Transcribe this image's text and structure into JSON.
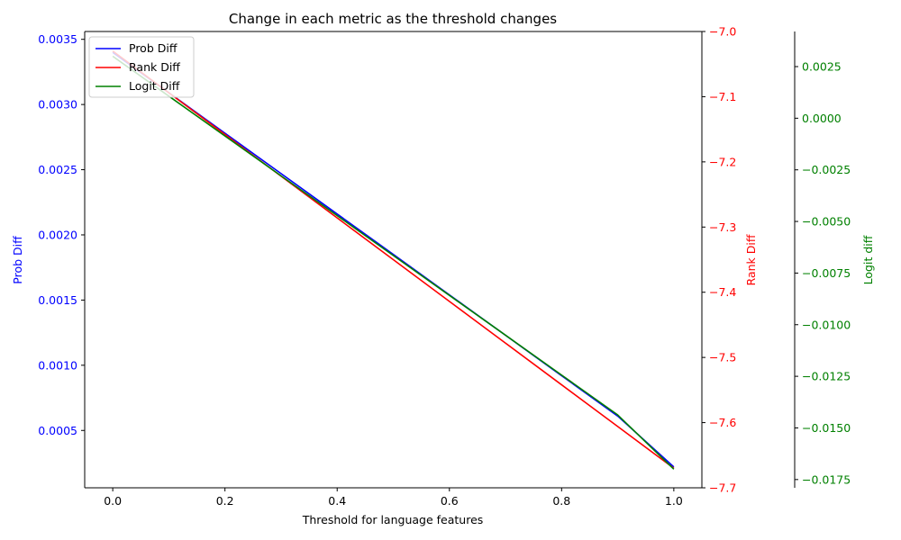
{
  "chart_data": {
    "type": "line",
    "title": "Change in each metric as the threshold changes",
    "xlabel": "Threshold for language features",
    "x": [
      0.0,
      0.1,
      0.2,
      0.3,
      0.4,
      0.5,
      0.6,
      0.7,
      0.8,
      0.9,
      1.0
    ],
    "xlim": [
      -0.05,
      1.05
    ],
    "xticks": [
      "0.0",
      "0.2",
      "0.4",
      "0.6",
      "0.8",
      "1.0"
    ],
    "axes": [
      {
        "id": "left",
        "label": "Prob Diff",
        "color": "#0000ff",
        "ylim": [
          6e-05,
          0.00356
        ],
        "ticks": [
          "0.0005",
          "0.0010",
          "0.0015",
          "0.0020",
          "0.0025",
          "0.0030",
          "0.0035"
        ]
      },
      {
        "id": "right",
        "label": "Rank Diff",
        "color": "#ff0000",
        "ylim": [
          -7.7,
          -7.0
        ],
        "ticks": [
          "−7.7",
          "−7.6",
          "−7.5",
          "−7.4",
          "−7.3",
          "−7.2",
          "−7.1",
          "−7.0"
        ]
      },
      {
        "id": "far-right",
        "label": "Logit diff",
        "color": "#008000",
        "ylim": [
          -0.0179,
          0.0042
        ],
        "ticks": [
          "−0.0175",
          "−0.0150",
          "−0.0125",
          "−0.0100",
          "−0.0075",
          "−0.0050",
          "−0.0025",
          "0.0000",
          "0.0025"
        ]
      }
    ],
    "series": [
      {
        "name": "Prob Diff",
        "axis": "left",
        "color": "#0000ff",
        "values": [
          0.0034,
          0.00309,
          0.00278,
          0.00247,
          0.00216,
          0.00185,
          0.00154,
          0.00123,
          0.00092,
          0.00061,
          0.00022
        ]
      },
      {
        "name": "Rank Diff",
        "axis": "right",
        "color": "#ff0000",
        "values": [
          -7.03,
          -7.094,
          -7.158,
          -7.222,
          -7.286,
          -7.35,
          -7.414,
          -7.478,
          -7.542,
          -7.606,
          -7.67
        ]
      },
      {
        "name": "Logit Diff",
        "axis": "far-right",
        "color": "#008000",
        "values": [
          0.003,
          0.00107,
          -0.00086,
          -0.00279,
          -0.00472,
          -0.00665,
          -0.00858,
          -0.01051,
          -0.01244,
          -0.01437,
          -0.017
        ]
      }
    ],
    "legend": {
      "placement": "top-left",
      "entries": [
        "Prob Diff",
        "Rank Diff",
        "Logit Diff"
      ]
    },
    "grid": false
  }
}
